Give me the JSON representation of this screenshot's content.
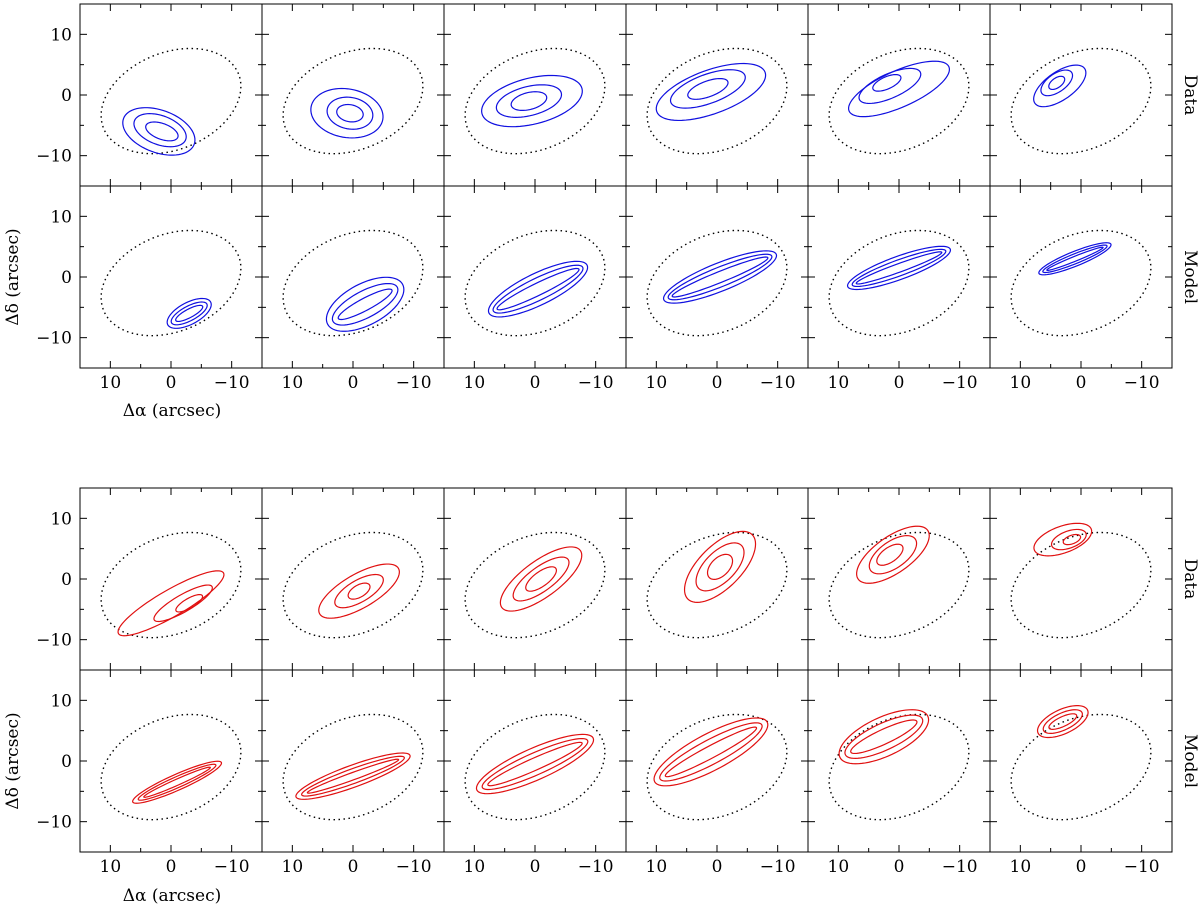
{
  "chart_data": {
    "type": "contour",
    "xlabel": "Δα (arcsec)",
    "ylabel": "Δδ (arcsec)",
    "xlim": [
      15,
      -15
    ],
    "ylim": [
      -15,
      15
    ],
    "x_ticks": [
      10,
      0,
      -10
    ],
    "x_tick_labels": [
      "10",
      "0",
      "−10"
    ],
    "y_ticks": [
      10,
      0,
      -10
    ],
    "y_tick_labels": [
      "10",
      "0",
      "−10"
    ],
    "row_labels": [
      "Data",
      "Model",
      "Data",
      "Model"
    ],
    "colors": {
      "blue": "#1010e0",
      "red": "#e01010",
      "ellipse": "#000000"
    },
    "ellipse": {
      "cx": 0,
      "cy": -1,
      "rx": 12,
      "ry": 8,
      "angle_deg": 22
    },
    "panels": [
      {
        "group": 0,
        "row": 0,
        "col": 0,
        "kind": "data",
        "contours": [
          {
            "cx": 1.5,
            "cy": -6,
            "rx": 2.8,
            "ry": 1.3,
            "angle": -20
          },
          {
            "cx": 1.8,
            "cy": -5.8,
            "rx": 4.5,
            "ry": 2.4,
            "angle": -20
          },
          {
            "cx": 2,
            "cy": -6,
            "rx": 6.2,
            "ry": 3.5,
            "angle": -20
          }
        ]
      },
      {
        "group": 0,
        "row": 0,
        "col": 1,
        "kind": "data",
        "contours": [
          {
            "cx": 0.5,
            "cy": -3,
            "rx": 2.2,
            "ry": 1.4,
            "angle": -10
          },
          {
            "cx": 0.5,
            "cy": -3,
            "rx": 3.8,
            "ry": 2.6,
            "angle": -10
          },
          {
            "cx": 1,
            "cy": -3,
            "rx": 6,
            "ry": 4,
            "angle": -10
          }
        ]
      },
      {
        "group": 0,
        "row": 0,
        "col": 2,
        "kind": "data",
        "contours": [
          {
            "cx": 1,
            "cy": -1,
            "rx": 3,
            "ry": 1.4,
            "angle": 14
          },
          {
            "cx": 1,
            "cy": -1,
            "rx": 5.5,
            "ry": 2.4,
            "angle": 14
          },
          {
            "cx": 0.5,
            "cy": -1,
            "rx": 8.5,
            "ry": 3.8,
            "angle": 14
          }
        ]
      },
      {
        "group": 0,
        "row": 0,
        "col": 3,
        "kind": "data",
        "contours": [
          {
            "cx": 1.5,
            "cy": 1,
            "rx": 3.5,
            "ry": 1.3,
            "angle": 20
          },
          {
            "cx": 1.5,
            "cy": 1,
            "rx": 6.5,
            "ry": 2.4,
            "angle": 20
          },
          {
            "cx": 1,
            "cy": 0.5,
            "rx": 9.5,
            "ry": 3.6,
            "angle": 20
          }
        ]
      },
      {
        "group": 0,
        "row": 0,
        "col": 4,
        "kind": "data",
        "contours": [
          {
            "cx": 2,
            "cy": 2,
            "rx": 2.5,
            "ry": 1,
            "angle": 24
          },
          {
            "cx": 1.5,
            "cy": 1.5,
            "rx": 5.5,
            "ry": 2,
            "angle": 24
          },
          {
            "cx": 0,
            "cy": 1,
            "rx": 9,
            "ry": 3,
            "angle": 24
          }
        ]
      },
      {
        "group": 0,
        "row": 0,
        "col": 5,
        "kind": "data",
        "contours": [
          {
            "cx": 4,
            "cy": 2,
            "rx": 1.5,
            "ry": 0.8,
            "angle": 35
          },
          {
            "cx": 4,
            "cy": 2,
            "rx": 3,
            "ry": 1.5,
            "angle": 35
          },
          {
            "cx": 3.5,
            "cy": 1.5,
            "rx": 5,
            "ry": 2.3,
            "angle": 35
          }
        ]
      },
      {
        "group": 0,
        "row": 1,
        "col": 0,
        "kind": "model",
        "contours": [
          {
            "cx": -3,
            "cy": -6,
            "rx": 2.5,
            "ry": 0.7,
            "angle": 28
          },
          {
            "cx": -3,
            "cy": -6,
            "rx": 3.3,
            "ry": 1.2,
            "angle": 28
          },
          {
            "cx": -3,
            "cy": -6,
            "rx": 4,
            "ry": 1.8,
            "angle": 28
          }
        ]
      },
      {
        "group": 0,
        "row": 1,
        "col": 1,
        "kind": "model",
        "contours": [
          {
            "cx": -2,
            "cy": -4.5,
            "rx": 5,
            "ry": 1,
            "angle": 28
          },
          {
            "cx": -2,
            "cy": -4.5,
            "rx": 6,
            "ry": 2.2,
            "angle": 28
          },
          {
            "cx": -2,
            "cy": -4.5,
            "rx": 7,
            "ry": 3.4,
            "angle": 28
          }
        ]
      },
      {
        "group": 0,
        "row": 1,
        "col": 2,
        "kind": "model",
        "contours": [
          {
            "cx": -0.5,
            "cy": -2,
            "rx": 7.5,
            "ry": 1,
            "angle": 26
          },
          {
            "cx": -0.5,
            "cy": -2,
            "rx": 8.2,
            "ry": 1.8,
            "angle": 26
          },
          {
            "cx": -0.5,
            "cy": -2,
            "rx": 9,
            "ry": 2.6,
            "angle": 26
          }
        ]
      },
      {
        "group": 0,
        "row": 1,
        "col": 3,
        "kind": "model",
        "contours": [
          {
            "cx": -0.5,
            "cy": 0,
            "rx": 8.5,
            "ry": 0.9,
            "angle": 22
          },
          {
            "cx": -0.5,
            "cy": 0,
            "rx": 9.2,
            "ry": 1.6,
            "angle": 22
          },
          {
            "cx": -0.5,
            "cy": 0,
            "rx": 10,
            "ry": 2.3,
            "angle": 22
          }
        ]
      },
      {
        "group": 0,
        "row": 1,
        "col": 4,
        "kind": "model",
        "contours": [
          {
            "cx": 0,
            "cy": 1.5,
            "rx": 7.5,
            "ry": 0.7,
            "angle": 20
          },
          {
            "cx": 0,
            "cy": 1.5,
            "rx": 8.2,
            "ry": 1.3,
            "angle": 20
          },
          {
            "cx": 0,
            "cy": 1.5,
            "rx": 9,
            "ry": 1.9,
            "angle": 20
          }
        ]
      },
      {
        "group": 0,
        "row": 1,
        "col": 5,
        "kind": "model",
        "contours": [
          {
            "cx": 1,
            "cy": 3,
            "rx": 5,
            "ry": 0.4,
            "angle": 22
          },
          {
            "cx": 1,
            "cy": 3,
            "rx": 5.7,
            "ry": 0.8,
            "angle": 22
          },
          {
            "cx": 1,
            "cy": 3,
            "rx": 6.4,
            "ry": 1.2,
            "angle": 22
          }
        ]
      },
      {
        "group": 1,
        "row": 0,
        "col": 0,
        "kind": "data",
        "contours": [
          {
            "cx": -3,
            "cy": -4,
            "rx": 2.5,
            "ry": 0.8,
            "angle": 30
          },
          {
            "cx": -2,
            "cy": -4,
            "rx": 5.5,
            "ry": 1.4,
            "angle": 30
          },
          {
            "cx": 0,
            "cy": -4,
            "rx": 10,
            "ry": 2.2,
            "angle": 30
          }
        ]
      },
      {
        "group": 1,
        "row": 0,
        "col": 1,
        "kind": "data",
        "contours": [
          {
            "cx": -1,
            "cy": -2,
            "rx": 2,
            "ry": 1,
            "angle": 30
          },
          {
            "cx": -1,
            "cy": -2,
            "rx": 4.5,
            "ry": 1.8,
            "angle": 30
          },
          {
            "cx": -1,
            "cy": -2,
            "rx": 7.5,
            "ry": 2.8,
            "angle": 30
          }
        ]
      },
      {
        "group": 1,
        "row": 0,
        "col": 2,
        "kind": "data",
        "contours": [
          {
            "cx": -1,
            "cy": 0,
            "rx": 3,
            "ry": 1.2,
            "angle": 36
          },
          {
            "cx": -1,
            "cy": 0,
            "rx": 5.5,
            "ry": 2,
            "angle": 36
          },
          {
            "cx": -1,
            "cy": 0,
            "rx": 8,
            "ry": 3,
            "angle": 36
          }
        ]
      },
      {
        "group": 1,
        "row": 0,
        "col": 3,
        "kind": "data",
        "contours": [
          {
            "cx": -0.5,
            "cy": 2,
            "rx": 2.5,
            "ry": 1.5,
            "angle": 45
          },
          {
            "cx": -0.5,
            "cy": 2,
            "rx": 5,
            "ry": 2.5,
            "angle": 45
          },
          {
            "cx": -0.5,
            "cy": 2,
            "rx": 7.5,
            "ry": 3.5,
            "angle": 45
          }
        ]
      },
      {
        "group": 1,
        "row": 0,
        "col": 4,
        "kind": "data",
        "contours": [
          {
            "cx": 1.5,
            "cy": 4,
            "rx": 2.5,
            "ry": 1.2,
            "angle": 35
          },
          {
            "cx": 1,
            "cy": 4,
            "rx": 4.5,
            "ry": 2.2,
            "angle": 35
          },
          {
            "cx": 1,
            "cy": 4,
            "rx": 7,
            "ry": 3,
            "angle": 35
          }
        ]
      },
      {
        "group": 1,
        "row": 0,
        "col": 5,
        "kind": "data",
        "contours": [
          {
            "cx": 1.5,
            "cy": 6.5,
            "rx": 1.5,
            "ry": 0.7,
            "angle": 20
          },
          {
            "cx": 2,
            "cy": 6.5,
            "rx": 3,
            "ry": 1.4,
            "angle": 20
          },
          {
            "cx": 3,
            "cy": 6.5,
            "rx": 5,
            "ry": 2.2,
            "angle": 20
          }
        ]
      },
      {
        "group": 1,
        "row": 1,
        "col": 0,
        "kind": "model",
        "contours": [
          {
            "cx": -1,
            "cy": -3.5,
            "rx": 6,
            "ry": 0.5,
            "angle": 24
          },
          {
            "cx": -1,
            "cy": -3.5,
            "rx": 7,
            "ry": 0.9,
            "angle": 24
          },
          {
            "cx": -1,
            "cy": -3.5,
            "rx": 8,
            "ry": 1.3,
            "angle": 24
          }
        ]
      },
      {
        "group": 1,
        "row": 1,
        "col": 1,
        "kind": "model",
        "contours": [
          {
            "cx": 0,
            "cy": -2.5,
            "rx": 8,
            "ry": 0.6,
            "angle": 20
          },
          {
            "cx": 0,
            "cy": -2.5,
            "rx": 9,
            "ry": 1.2,
            "angle": 20
          },
          {
            "cx": 0,
            "cy": -2.5,
            "rx": 10,
            "ry": 1.8,
            "angle": 20
          }
        ]
      },
      {
        "group": 1,
        "row": 1,
        "col": 2,
        "kind": "model",
        "contours": [
          {
            "cx": 0,
            "cy": -0.5,
            "rx": 8.5,
            "ry": 1,
            "angle": 24
          },
          {
            "cx": 0,
            "cy": -0.5,
            "rx": 9.5,
            "ry": 1.8,
            "angle": 24
          },
          {
            "cx": 0,
            "cy": -0.5,
            "rx": 10.5,
            "ry": 2.6,
            "angle": 24
          }
        ]
      },
      {
        "group": 1,
        "row": 1,
        "col": 3,
        "kind": "model",
        "contours": [
          {
            "cx": 1,
            "cy": 1.5,
            "rx": 8.5,
            "ry": 1,
            "angle": 28
          },
          {
            "cx": 1,
            "cy": 1.5,
            "rx": 9.5,
            "ry": 2,
            "angle": 28
          },
          {
            "cx": 1,
            "cy": 1.5,
            "rx": 10.5,
            "ry": 3,
            "angle": 28
          }
        ]
      },
      {
        "group": 1,
        "row": 1,
        "col": 4,
        "kind": "model",
        "contours": [
          {
            "cx": 2.5,
            "cy": 4,
            "rx": 6,
            "ry": 1.2,
            "angle": 25
          },
          {
            "cx": 2.5,
            "cy": 4,
            "rx": 7,
            "ry": 2.2,
            "angle": 25
          },
          {
            "cx": 2.5,
            "cy": 4,
            "rx": 8,
            "ry": 3.2,
            "angle": 25
          }
        ]
      },
      {
        "group": 1,
        "row": 1,
        "col": 5,
        "kind": "model",
        "contours": [
          {
            "cx": 3,
            "cy": 6.5,
            "rx": 2.5,
            "ry": 0.8,
            "angle": 25
          },
          {
            "cx": 3,
            "cy": 6.5,
            "rx": 3.5,
            "ry": 1.4,
            "angle": 25
          },
          {
            "cx": 3,
            "cy": 6.5,
            "rx": 4.5,
            "ry": 2,
            "angle": 25
          }
        ]
      }
    ]
  }
}
